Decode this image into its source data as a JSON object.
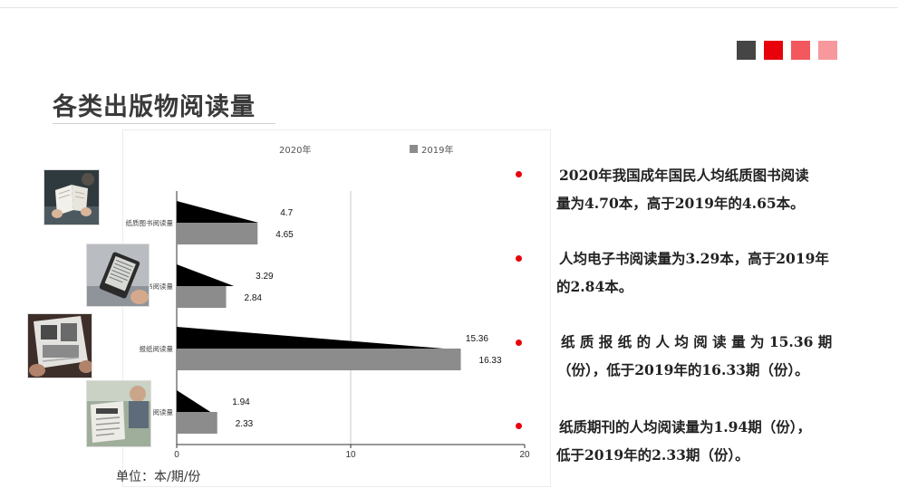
{
  "page": {
    "title": "各类出版物阅读量",
    "unit": "单位：本/期/份",
    "deco_colors": [
      "#454545",
      "#e8000b",
      "#f2585e",
      "#f7989c"
    ]
  },
  "images": [
    {
      "name": "reading-book-photo",
      "label": "person reading book"
    },
    {
      "name": "ereader-photo",
      "label": "e-book reader"
    },
    {
      "name": "newspaper-reading-photo",
      "label": "reading newspaper"
    },
    {
      "name": "magazine-reading-photo",
      "label": "reading magazine"
    }
  ],
  "chart_data": {
    "type": "bar",
    "orientation": "horizontal",
    "categories": [
      "纸质图书阅读量",
      "电子书阅读量",
      "报纸阅读量",
      "期刊阅读量"
    ],
    "category_labels_visible": [
      "纸质图书阅读量",
      "书阅读量",
      "报纸阅读量",
      "阅读量"
    ],
    "series": [
      {
        "name": "2020年",
        "values": [
          4.7,
          3.29,
          15.36,
          1.94
        ],
        "color": "#000000",
        "value_labels": [
          "4.7",
          "3.29",
          "15.36",
          "1.94"
        ]
      },
      {
        "name": "2019年",
        "values": [
          4.65,
          2.84,
          16.33,
          2.33
        ],
        "color": "#8c8c8c",
        "value_labels": [
          "4.65",
          "2.84",
          "16.33",
          "2.33"
        ]
      }
    ],
    "xlim": [
      0,
      20
    ],
    "xticks": [
      "0",
      "10",
      "20"
    ],
    "grid": true,
    "legend_position": "top"
  },
  "notes": [
    {
      "lines": [
        "2020年我国成年国民人均纸质图书阅读",
        "量为4.70本，高于2019年的4.65本。"
      ]
    },
    {
      "lines": [
        "人均电子书阅读量为3.29本，高于2019年",
        "的2.84本。"
      ]
    },
    {
      "lines": [
        "纸 质 报 纸 的 人 均 阅 读 量 为 15.36 期",
        "（份），低于2019年的16.33期（份）。"
      ]
    },
    {
      "lines": [
        "纸质期刊的人均阅读量为1.94期（份），",
        "低于2019年的2.33期（份）。"
      ]
    }
  ]
}
